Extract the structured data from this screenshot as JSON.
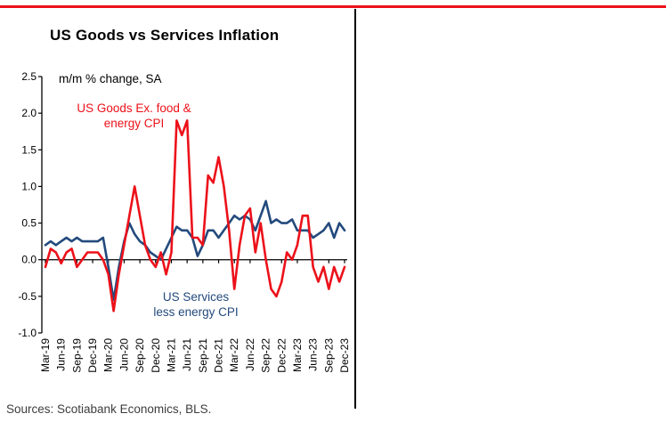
{
  "page": {
    "title": "US Goods vs Services Inflation",
    "subtitle": "m/m % change, SA",
    "source_note": "Sources: Scotiabank Economics, BLS.",
    "annotations": {
      "goods_line1": "US Goods Ex. food &",
      "goods_line2": "energy CPI",
      "services_line1": "US Services",
      "services_line2": "less energy CPI"
    },
    "colors": {
      "goods_red": "#EC111A",
      "services_navy": "#234A7D",
      "accent_rule_red": "#EC111A",
      "axis_black": "#000000"
    }
  },
  "chart_data": {
    "type": "line",
    "title": "US Goods vs Services Inflation",
    "subtitle": "m/m % change, SA",
    "xlabel": "",
    "ylabel": "m/m % change, SA",
    "ylim": [
      -1.0,
      2.5
    ],
    "ytick_labels": [
      "2.5",
      "2.0",
      "1.5",
      "1.0",
      "0.5",
      "0.0",
      "-0.5",
      "-1.0"
    ],
    "xtick_every": 3,
    "grid": false,
    "legend_position": "in-plot annotations",
    "x": [
      "Mar-19",
      "Apr-19",
      "May-19",
      "Jun-19",
      "Jul-19",
      "Aug-19",
      "Sep-19",
      "Oct-19",
      "Nov-19",
      "Dec-19",
      "Jan-20",
      "Feb-20",
      "Mar-20",
      "Apr-20",
      "May-20",
      "Jun-20",
      "Jul-20",
      "Aug-20",
      "Sep-20",
      "Oct-20",
      "Nov-20",
      "Dec-20",
      "Jan-21",
      "Feb-21",
      "Mar-21",
      "Apr-21",
      "May-21",
      "Jun-21",
      "Jul-21",
      "Aug-21",
      "Sep-21",
      "Oct-21",
      "Nov-21",
      "Dec-21",
      "Jan-22",
      "Feb-22",
      "Mar-22",
      "Apr-22",
      "May-22",
      "Jun-22",
      "Jul-22",
      "Aug-22",
      "Sep-22",
      "Oct-22",
      "Nov-22",
      "Dec-22",
      "Jan-23",
      "Feb-23",
      "Mar-23",
      "Apr-23",
      "May-23",
      "Jun-23",
      "Jul-23",
      "Aug-23",
      "Sep-23",
      "Oct-23",
      "Nov-23",
      "Dec-23"
    ],
    "series": [
      {
        "name": "US Goods Ex. food & energy CPI",
        "color": "#EC111A",
        "values": [
          -0.1,
          0.15,
          0.1,
          -0.05,
          0.1,
          0.15,
          -0.1,
          0.0,
          0.1,
          0.1,
          0.1,
          0.0,
          -0.2,
          -0.7,
          -0.2,
          0.2,
          0.6,
          1.0,
          0.6,
          0.2,
          0.0,
          -0.1,
          0.1,
          -0.2,
          0.1,
          1.9,
          1.7,
          1.9,
          0.3,
          0.3,
          0.2,
          1.15,
          1.05,
          1.4,
          1.0,
          0.4,
          -0.4,
          0.2,
          0.6,
          0.7,
          0.1,
          0.5,
          0.0,
          -0.4,
          -0.5,
          -0.3,
          0.1,
          0.0,
          0.2,
          0.6,
          0.6,
          -0.1,
          -0.3,
          -0.1,
          -0.4,
          -0.1,
          -0.3,
          -0.1
        ]
      },
      {
        "name": "US Services less energy CPI",
        "color": "#234A7D",
        "values": [
          0.2,
          0.25,
          0.2,
          0.25,
          0.3,
          0.25,
          0.3,
          0.25,
          0.25,
          0.25,
          0.25,
          0.3,
          -0.1,
          -0.55,
          -0.1,
          0.25,
          0.5,
          0.35,
          0.25,
          0.2,
          0.1,
          0.05,
          0.0,
          0.15,
          0.3,
          0.45,
          0.4,
          0.4,
          0.3,
          0.05,
          0.2,
          0.4,
          0.4,
          0.3,
          0.4,
          0.5,
          0.6,
          0.55,
          0.6,
          0.55,
          0.4,
          0.6,
          0.8,
          0.5,
          0.55,
          0.5,
          0.5,
          0.55,
          0.4,
          0.4,
          0.4,
          0.3,
          0.35,
          0.4,
          0.5,
          0.3,
          0.5,
          0.4
        ]
      }
    ]
  }
}
